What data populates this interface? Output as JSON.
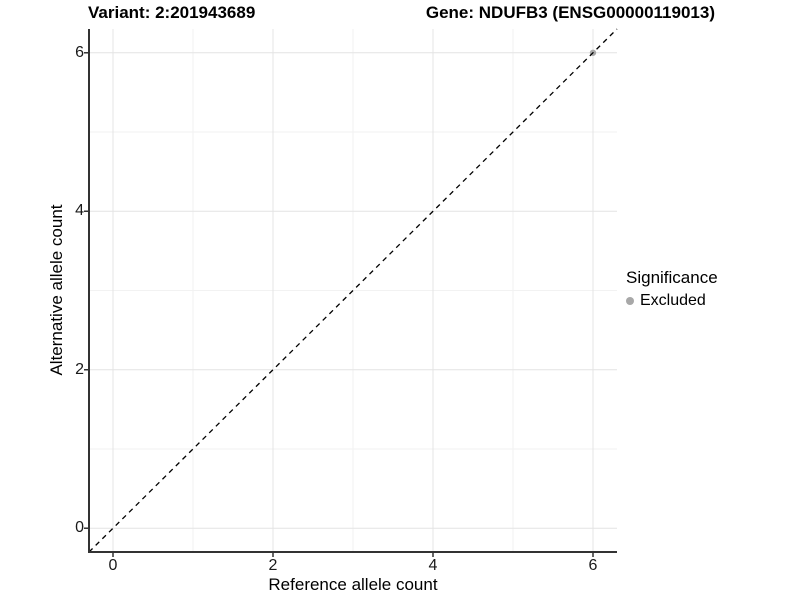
{
  "header": {
    "title_left": "Variant: 2:201943689",
    "title_right": "Gene: NDUFB3 (ENSG00000119013)"
  },
  "axes": {
    "x_label": "Reference allele count",
    "y_label": "Alternative allele count"
  },
  "legend": {
    "title": "Significance",
    "items": [
      {
        "label": "Excluded",
        "color": "#a8a8a8",
        "icon": "circle-point-icon"
      }
    ]
  },
  "chart_data": {
    "type": "scatter",
    "title": "Variant: 2:201943689 | Gene: NDUFB3 (ENSG00000119013)",
    "xlabel": "Reference allele count",
    "ylabel": "Alternative allele count",
    "xlim": [
      -0.3,
      6.3
    ],
    "ylim": [
      -0.3,
      6.3
    ],
    "x_major_ticks": [
      0,
      2,
      4,
      6
    ],
    "y_major_ticks": [
      0,
      2,
      4,
      6
    ],
    "x_minor_gridlines": [
      1,
      3,
      5
    ],
    "y_minor_gridlines": [
      1,
      3,
      5
    ],
    "grid": "major-and-minor",
    "legend_position": "right",
    "series": [
      {
        "name": "Excluded",
        "color": "#a8a8a8",
        "points": [
          {
            "x": 6,
            "y": 6
          }
        ]
      }
    ],
    "reference_line": {
      "slope": 1,
      "intercept": 0,
      "style": "dashed",
      "color": "#000000"
    }
  },
  "colors": {
    "background": "#ffffff",
    "panel_background": "#ffffff",
    "grid_major": "#e4e4e4",
    "grid_minor": "#f2f2f2",
    "axis_line": "#333333",
    "tick_mark": "#333333",
    "text": "#000000"
  }
}
